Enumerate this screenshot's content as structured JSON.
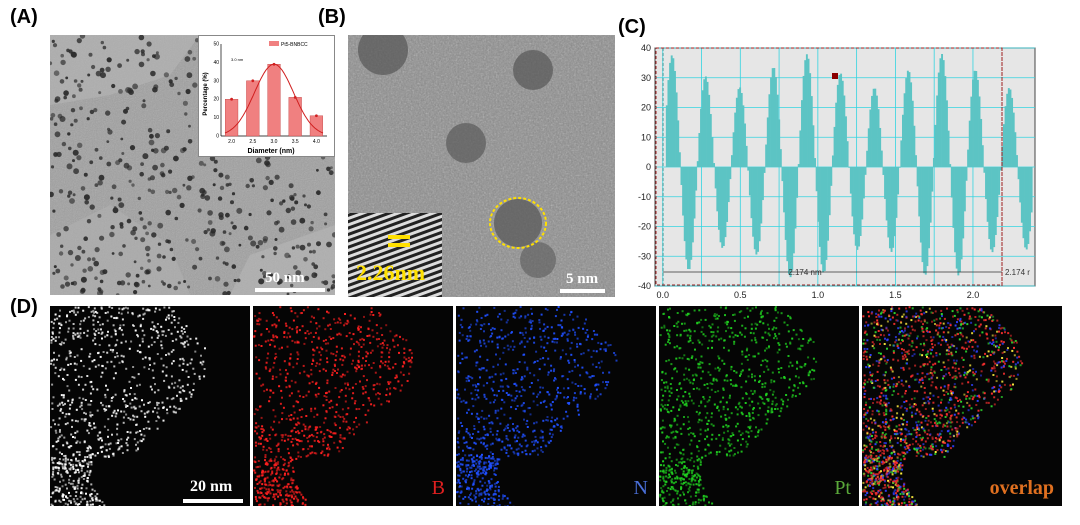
{
  "figure": {
    "panel_a": {
      "label": "(A)",
      "scale_bar": "50 nm",
      "inset": {
        "legend": "Pt5-BNBCC",
        "peak_annotation": "3.0 nm",
        "xlabel": "Diameter (nm)",
        "ylabel": "Percentage (%)"
      }
    },
    "panel_b": {
      "label": "(B)",
      "lattice_label": "2.26nm",
      "scale_bar": "5 nm"
    },
    "panel_c": {
      "label": "(C)",
      "measure_left": "2.174 nm",
      "measure_right": "2.174 r"
    },
    "panel_d": {
      "label": "(D)",
      "scale_bar": "20 nm",
      "maps": [
        {
          "name": "haadf",
          "label": "",
          "color": "#ffffff"
        },
        {
          "name": "B",
          "label": "B",
          "color": "#ff2020",
          "label_color": "#e02020"
        },
        {
          "name": "N",
          "label": "N",
          "color": "#2050ff",
          "label_color": "#4a6fd8"
        },
        {
          "name": "Pt",
          "label": "Pt",
          "color": "#20d020",
          "label_color": "#5aa83a"
        },
        {
          "name": "overlap",
          "label": "overlap",
          "color": "#ff4040",
          "label_color": "#e07020"
        }
      ]
    }
  },
  "chart_data": [
    {
      "type": "bar",
      "categories": [
        "2.0",
        "2.5",
        "3.0",
        "3.5",
        "4.0"
      ],
      "values": [
        20,
        30,
        39,
        21,
        11
      ],
      "xlabel": "Diameter (nm)",
      "ylabel": "Percentage (%)",
      "ylim": [
        0,
        50
      ],
      "yticks": [
        "0",
        "10",
        "20",
        "30",
        "40",
        "50"
      ],
      "legend": "Pt5-BNBCC",
      "fit": "gaussian",
      "bar_color": "#f08080",
      "fit_color": "#d02020"
    },
    {
      "type": "bar",
      "xlim": [
        -0.05,
        2.4
      ],
      "ylim": [
        -40,
        40
      ],
      "xticks": [
        "0.0",
        "0.5",
        "1.0",
        "1.5",
        "2.0"
      ],
      "yticks": [
        "40",
        "30",
        "20",
        "10",
        "0",
        "-10",
        "-20",
        "-30",
        "-40"
      ],
      "period": 0.2174,
      "amplitude": 38,
      "bar_color": "#5cc4c4",
      "grid": true
    }
  ]
}
